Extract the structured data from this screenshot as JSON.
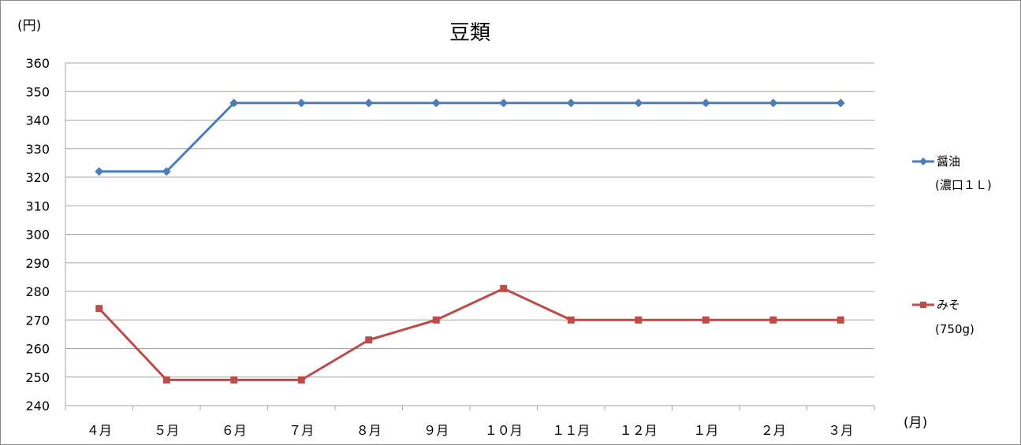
{
  "chart_data": {
    "type": "line",
    "title": "豆類",
    "ylabel": "(円)",
    "xlabel": "(月)",
    "ylim": [
      240,
      360
    ],
    "yticks": [
      240,
      250,
      260,
      270,
      280,
      290,
      300,
      310,
      320,
      330,
      340,
      350,
      360
    ],
    "categories": [
      "４月",
      "５月",
      "６月",
      "７月",
      "８月",
      "９月",
      "１０月",
      "１１月",
      "１２月",
      "１月",
      "２月",
      "３月"
    ],
    "grid": true,
    "legend_position": "right",
    "series": [
      {
        "name_line1": "醤油",
        "name_line2": "(濃口１Ｌ)",
        "marker": "diamond",
        "color": "#4a7ebb",
        "values": [
          322,
          322,
          346,
          346,
          346,
          346,
          346,
          346,
          346,
          346,
          346,
          346
        ]
      },
      {
        "name_line1": "みそ",
        "name_line2": "(750g)",
        "marker": "square",
        "color": "#be4b48",
        "values": [
          274,
          249,
          249,
          249,
          263,
          270,
          281,
          270,
          270,
          270,
          270,
          270
        ]
      }
    ]
  }
}
